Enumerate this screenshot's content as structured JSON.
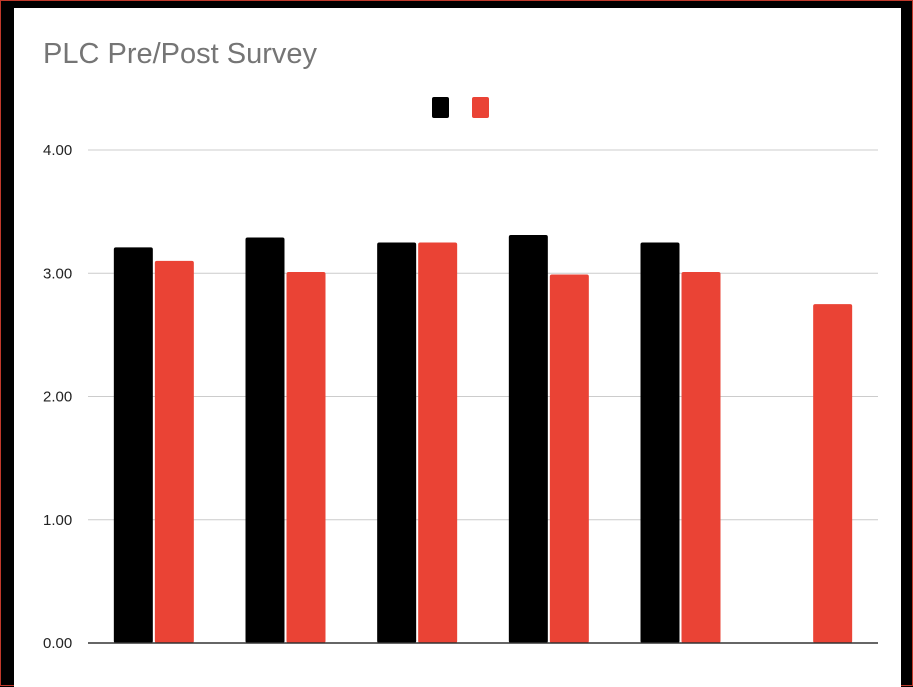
{
  "chart_data": {
    "type": "bar",
    "title": "PLC Pre/Post Survey",
    "xlabel": "",
    "ylabel": "",
    "categories": [
      "",
      "",
      "",
      "",
      "",
      ""
    ],
    "series": [
      {
        "color": "#000000",
        "values": [
          3.21,
          3.29,
          3.25,
          3.31,
          3.25,
          null
        ]
      },
      {
        "color": "#ea4335",
        "values": [
          3.1,
          3.01,
          3.25,
          2.99,
          3.01,
          2.75
        ]
      }
    ],
    "ylim": [
      0,
      4
    ],
    "yticks": [
      "0.00",
      "1.00",
      "2.00",
      "3.00",
      "4.00"
    ],
    "grid": true,
    "legend": "top-center"
  }
}
